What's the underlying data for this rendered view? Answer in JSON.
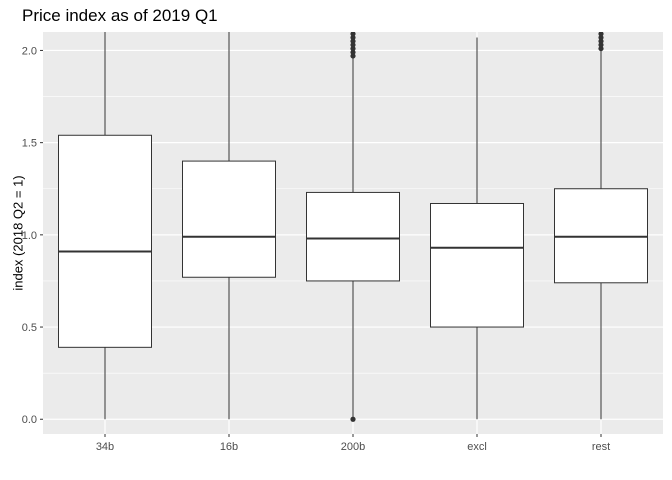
{
  "chart_data": {
    "type": "boxplot",
    "title": "Price index as of 2019 Q1",
    "xlabel": "",
    "ylabel": "index (2018 Q2 = 1)",
    "categories": [
      "34b",
      "16b",
      "200b",
      "excl",
      "rest"
    ],
    "ylim": [
      -0.08,
      2.1
    ],
    "yticks": [
      0.0,
      0.5,
      1.0,
      1.5,
      2.0
    ],
    "ytick_labels": [
      "0.0",
      "0.5",
      "1.0",
      "1.5",
      "2.0"
    ],
    "grid": true,
    "boxes": [
      {
        "category": "34b",
        "whisker_low": 0.0,
        "q1": 0.39,
        "median": 0.91,
        "q3": 1.54,
        "whisker_high": 2.1,
        "outliers": []
      },
      {
        "category": "16b",
        "whisker_low": 0.0,
        "q1": 0.77,
        "median": 0.99,
        "q3": 1.4,
        "whisker_high": 2.1,
        "outliers": []
      },
      {
        "category": "200b",
        "whisker_low": 0.0,
        "q1": 0.75,
        "median": 0.98,
        "q3": 1.23,
        "whisker_high": 1.96,
        "outliers": [
          0.0,
          1.97,
          1.99,
          2.01,
          2.03,
          2.05,
          2.07,
          2.09
        ]
      },
      {
        "category": "excl",
        "whisker_low": 0.0,
        "q1": 0.5,
        "median": 0.93,
        "q3": 1.17,
        "whisker_high": 2.07,
        "outliers": []
      },
      {
        "category": "rest",
        "whisker_low": 0.0,
        "q1": 0.74,
        "median": 0.99,
        "q3": 1.25,
        "whisker_high": 2.0,
        "outliers": [
          2.01,
          2.03,
          2.05,
          2.07,
          2.09
        ]
      }
    ],
    "colors": {
      "panel": "#EBEBEB",
      "grid": "#FFFFFF",
      "box_fill": "#FFFFFF",
      "line": "#333333",
      "outlier": "#333333"
    }
  }
}
